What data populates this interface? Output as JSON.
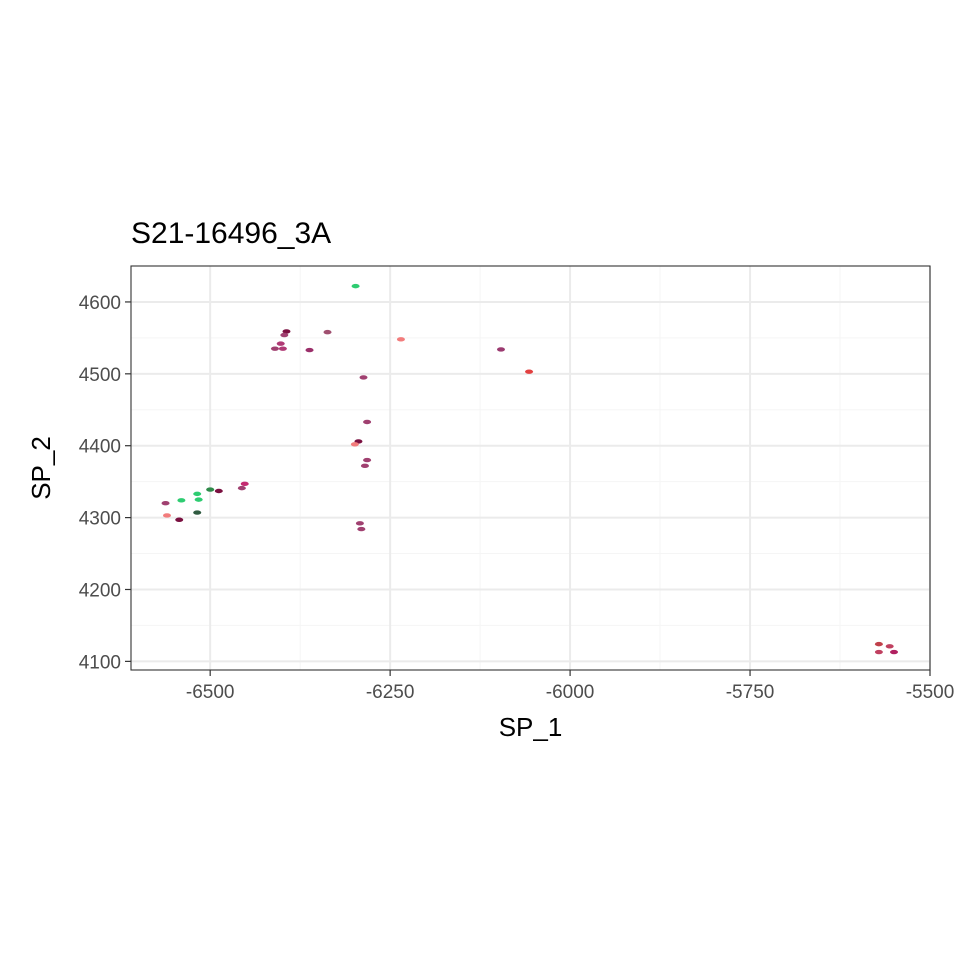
{
  "chart_data": {
    "type": "scatter",
    "title": "S21-16496_3A",
    "xlabel": "SP_1",
    "ylabel": "SP_2",
    "xlim": [
      -6610,
      -5500
    ],
    "ylim": [
      4088,
      4650
    ],
    "x_ticks": [
      -6500,
      -6250,
      -6000,
      -5750,
      -5500
    ],
    "x_tick_labels": [
      "-6500",
      "-6250",
      "-6000",
      "-5750",
      "-5500"
    ],
    "y_ticks": [
      4100,
      4200,
      4300,
      4400,
      4500,
      4600
    ],
    "y_tick_labels": [
      "4100",
      "4200",
      "4300",
      "4400",
      "4500",
      "4600"
    ],
    "grid": true,
    "legend": "none",
    "colors": {
      "panel_border": "#333333",
      "grid_major": "#ebebeb",
      "grid_minor": "#f5f5f5",
      "tick": "#333333"
    },
    "points": [
      {
        "x": -6298,
        "y": 4622,
        "color": "#2ecc71"
      },
      {
        "x": -6394,
        "y": 4559,
        "color": "#7a1040"
      },
      {
        "x": -6397,
        "y": 4554,
        "color": "#a04070"
      },
      {
        "x": -6402,
        "y": 4542,
        "color": "#b03a75"
      },
      {
        "x": -6410,
        "y": 4535,
        "color": "#a04070"
      },
      {
        "x": -6399,
        "y": 4535,
        "color": "#b03a75"
      },
      {
        "x": -6362,
        "y": 4533,
        "color": "#9b2f6a"
      },
      {
        "x": -6337,
        "y": 4558,
        "color": "#a05070"
      },
      {
        "x": -6235,
        "y": 4548,
        "color": "#f27c7c"
      },
      {
        "x": -6096,
        "y": 4534,
        "color": "#9b3a70"
      },
      {
        "x": -6057,
        "y": 4503,
        "color": "#e24040"
      },
      {
        "x": -6287,
        "y": 4495,
        "color": "#a04070"
      },
      {
        "x": -6282,
        "y": 4433,
        "color": "#a04070"
      },
      {
        "x": -6294,
        "y": 4406,
        "color": "#7a1040"
      },
      {
        "x": -6299,
        "y": 4402,
        "color": "#f27c7c"
      },
      {
        "x": -6282,
        "y": 4380,
        "color": "#a04070"
      },
      {
        "x": -6285,
        "y": 4372,
        "color": "#a04070"
      },
      {
        "x": -6452,
        "y": 4347,
        "color": "#c42a70"
      },
      {
        "x": -6456,
        "y": 4341,
        "color": "#a04070"
      },
      {
        "x": -6500,
        "y": 4339,
        "color": "#2f8a4a"
      },
      {
        "x": -6488,
        "y": 4337,
        "color": "#7a1040"
      },
      {
        "x": -6518,
        "y": 4333,
        "color": "#2ecc71"
      },
      {
        "x": -6516,
        "y": 4325,
        "color": "#2ecc71"
      },
      {
        "x": -6540,
        "y": 4324,
        "color": "#2ecc71"
      },
      {
        "x": -6562,
        "y": 4320,
        "color": "#a04070"
      },
      {
        "x": -6518,
        "y": 4307,
        "color": "#2f5a40"
      },
      {
        "x": -6560,
        "y": 4303,
        "color": "#f27c7c"
      },
      {
        "x": -6543,
        "y": 4297,
        "color": "#7a1040"
      },
      {
        "x": -6292,
        "y": 4292,
        "color": "#a04070"
      },
      {
        "x": -6290,
        "y": 4284,
        "color": "#a04070"
      },
      {
        "x": -5571,
        "y": 4124,
        "color": "#c0404a"
      },
      {
        "x": -5556,
        "y": 4121,
        "color": "#c04060"
      },
      {
        "x": -5571,
        "y": 4113,
        "color": "#c04060"
      },
      {
        "x": -5550,
        "y": 4113,
        "color": "#b02060"
      }
    ]
  }
}
